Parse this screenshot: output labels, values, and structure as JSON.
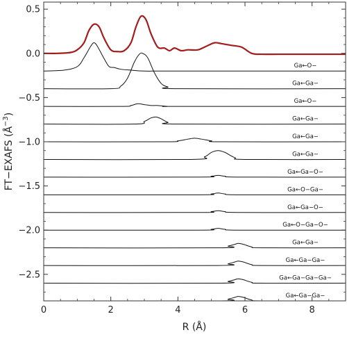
{
  "chart_data": {
    "type": "line",
    "title": "",
    "xlabel": "R (Å)",
    "ylabel": "FT−EXAFS (Å",
    "ylabel_exp": "−3",
    "ylabel_close": ")",
    "xlim": [
      0,
      9
    ],
    "ylim": [
      -2.8,
      0.58
    ],
    "x_ticks": [
      0,
      2,
      4,
      6,
      8
    ],
    "y_ticks": [
      0.5,
      0.0,
      -0.5,
      -1.0,
      -1.5,
      -2.0,
      -2.5
    ],
    "y_tick_labels": [
      "0.5",
      "0.0",
      "−0.5",
      "−1.0",
      "−1.5",
      "−2.0",
      "−2.5"
    ],
    "total": {
      "color": "#a31c1c",
      "x": [
        0.0,
        0.4,
        0.8,
        1.0,
        1.2,
        1.35,
        1.5,
        1.65,
        1.8,
        2.0,
        2.2,
        2.4,
        2.6,
        2.75,
        2.9,
        3.05,
        3.2,
        3.4,
        3.6,
        3.75,
        3.9,
        4.1,
        4.3,
        4.6,
        4.9,
        5.1,
        5.3,
        5.6,
        5.9,
        6.2,
        6.5,
        7.0,
        7.5,
        8.0,
        8.5,
        9.0
      ],
      "y": [
        0.0,
        0.0,
        0.01,
        0.04,
        0.12,
        0.26,
        0.33,
        0.3,
        0.17,
        0.04,
        0.02,
        0.03,
        0.12,
        0.3,
        0.42,
        0.38,
        0.22,
        0.07,
        0.06,
        0.03,
        0.06,
        0.03,
        0.04,
        0.04,
        0.09,
        0.12,
        0.11,
        0.09,
        0.07,
        0.0,
        -0.01,
        -0.01,
        -0.01,
        -0.01,
        -0.01,
        -0.01
      ]
    },
    "series": [
      {
        "name": "Ga←O−",
        "offset": -0.2,
        "x": [
          0.0,
          0.6,
          1.0,
          1.2,
          1.4,
          1.5,
          1.6,
          1.8,
          1.95,
          2.1,
          2.3,
          2.6,
          3.0,
          4.0,
          9.0
        ],
        "y": [
          0.0,
          0.01,
          0.05,
          0.15,
          0.28,
          0.32,
          0.28,
          0.14,
          0.05,
          0.04,
          0.02,
          0.01,
          0.0,
          0.0,
          0.0
        ]
      },
      {
        "name": "Ga←Ga−",
        "offset": -0.4,
        "x": [
          0.0,
          2.0,
          2.3,
          2.5,
          2.7,
          2.85,
          2.95,
          3.1,
          3.3,
          3.5,
          3.7,
          4.0,
          9.0
        ],
        "y": [
          0.0,
          0.0,
          0.03,
          0.12,
          0.3,
          0.39,
          0.4,
          0.35,
          0.18,
          0.06,
          0.02,
          0.0,
          0.0
        ]
      },
      {
        "name": "Ga←O−",
        "offset": -0.6,
        "x": [
          0.0,
          2.3,
          2.6,
          2.8,
          3.0,
          3.2,
          3.4,
          3.7,
          4.0,
          9.0
        ],
        "y": [
          0.0,
          0.0,
          0.01,
          0.03,
          0.02,
          0.01,
          0.01,
          0.0,
          0.0,
          0.0
        ]
      },
      {
        "name": "Ga←Ga−",
        "offset": -0.8,
        "x": [
          0.0,
          2.7,
          3.0,
          3.2,
          3.35,
          3.5,
          3.7,
          4.0,
          9.0
        ],
        "y": [
          0.0,
          0.0,
          0.03,
          0.07,
          0.08,
          0.06,
          0.02,
          0.0,
          0.0
        ]
      },
      {
        "name": "Ga←Ga−",
        "offset": -1.0,
        "x": [
          0.0,
          3.6,
          4.0,
          4.3,
          4.5,
          4.7,
          5.0,
          5.3,
          9.0
        ],
        "y": [
          0.0,
          0.0,
          0.01,
          0.03,
          0.04,
          0.03,
          0.01,
          0.0,
          0.0
        ]
      },
      {
        "name": "Ga←Ga−",
        "offset": -1.2,
        "x": [
          0.0,
          4.4,
          4.8,
          5.0,
          5.2,
          5.4,
          5.7,
          6.0,
          9.0
        ],
        "y": [
          0.0,
          0.0,
          0.03,
          0.08,
          0.1,
          0.08,
          0.02,
          0.0,
          0.0
        ]
      },
      {
        "name": "Ga←Ga−O−",
        "offset": -1.4,
        "x": [
          0.0,
          4.6,
          5.0,
          5.2,
          5.4,
          5.8,
          9.0
        ],
        "y": [
          0.0,
          0.0,
          0.01,
          0.02,
          0.01,
          0.0,
          0.0
        ]
      },
      {
        "name": "Ga←O−Ga−",
        "offset": -1.6,
        "x": [
          0.0,
          4.6,
          5.0,
          5.2,
          5.4,
          5.8,
          9.0
        ],
        "y": [
          0.0,
          0.0,
          0.01,
          0.02,
          0.01,
          0.0,
          0.0
        ]
      },
      {
        "name": "Ga←Ga−O−",
        "offset": -1.8,
        "x": [
          0.0,
          4.6,
          5.0,
          5.2,
          5.4,
          5.8,
          9.0
        ],
        "y": [
          0.0,
          0.0,
          0.01,
          0.02,
          0.01,
          0.0,
          0.0
        ]
      },
      {
        "name": "Ga←O−Ga−O−",
        "offset": -2.0,
        "x": [
          0.0,
          4.6,
          5.0,
          5.2,
          5.4,
          5.8,
          9.0
        ],
        "y": [
          0.0,
          0.0,
          0.01,
          0.02,
          0.01,
          0.0,
          0.0
        ]
      },
      {
        "name": "Ga←Ga−",
        "offset": -2.2,
        "x": [
          0.0,
          5.2,
          5.5,
          5.7,
          5.8,
          5.95,
          6.2,
          6.5,
          9.0
        ],
        "y": [
          0.0,
          0.0,
          0.02,
          0.04,
          0.05,
          0.04,
          0.01,
          0.0,
          0.0
        ]
      },
      {
        "name": "Ga←Ga−Ga−",
        "offset": -2.4,
        "x": [
          0.0,
          5.2,
          5.5,
          5.7,
          5.8,
          5.95,
          6.2,
          6.5,
          9.0
        ],
        "y": [
          0.0,
          0.0,
          0.02,
          0.04,
          0.05,
          0.04,
          0.01,
          0.0,
          0.0
        ]
      },
      {
        "name": "Ga←Ga−Ga−Ga−",
        "offset": -2.6,
        "x": [
          0.0,
          5.2,
          5.5,
          5.7,
          5.8,
          5.95,
          6.2,
          6.5,
          9.0
        ],
        "y": [
          0.0,
          0.0,
          0.02,
          0.04,
          0.05,
          0.04,
          0.01,
          0.0,
          0.0
        ]
      },
      {
        "name": "Ga←Ga−Ga−",
        "offset": -2.8,
        "x": [
          0.0,
          5.2,
          5.5,
          5.7,
          5.8,
          5.95,
          6.2,
          6.5,
          9.0
        ],
        "y": [
          0.0,
          0.0,
          0.02,
          0.04,
          0.05,
          0.04,
          0.01,
          0.0,
          0.0
        ]
      }
    ]
  }
}
